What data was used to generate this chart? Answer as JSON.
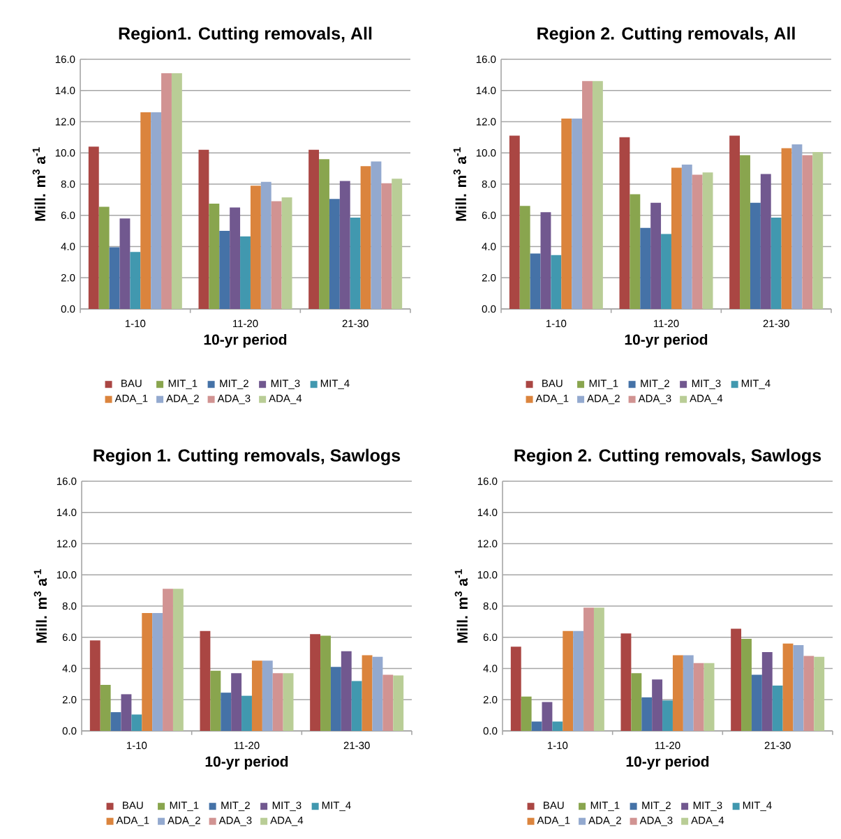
{
  "chart_data": [
    {
      "type": "bar",
      "title": "Region1. Cutting removals, All",
      "xlabel": "10-yr period",
      "ylabel": "Mill. m$^{3}$ a$^{-1}$",
      "categories": [
        "1-10",
        "11-20",
        "21-30"
      ],
      "ylim": [
        0,
        16
      ],
      "yticks": [
        {
          "value": 0,
          "label": "0.0"
        },
        {
          "value": 2,
          "label": "2.0"
        },
        {
          "value": 4,
          "label": "4.0"
        },
        {
          "value": 6,
          "label": "6.0"
        },
        {
          "value": 8,
          "label": "8.0"
        },
        {
          "value": 10,
          "label": "10.0"
        },
        {
          "value": 12,
          "label": "12.0"
        },
        {
          "value": 14,
          "label": "14.0"
        },
        {
          "value": 16,
          "label": "16.0"
        }
      ],
      "grid": "y",
      "legend": "bottom",
      "series": [
        {
          "name": "BAU",
          "color": "#aa4643",
          "values": [
            10.4,
            10.2,
            10.2
          ]
        },
        {
          "name": "MIT_1",
          "color": "#89a54e",
          "values": [
            6.55,
            6.75,
            9.6
          ]
        },
        {
          "name": "MIT_2",
          "color": "#4572a7",
          "values": [
            3.95,
            5.0,
            7.05
          ]
        },
        {
          "name": "MIT_3",
          "color": "#71588f",
          "values": [
            5.8,
            6.5,
            8.2
          ]
        },
        {
          "name": "MIT_4",
          "color": "#4198af",
          "values": [
            3.65,
            4.65,
            5.85
          ]
        },
        {
          "name": "ADA_1",
          "color": "#db843d",
          "values": [
            12.6,
            7.9,
            9.15
          ]
        },
        {
          "name": "ADA_2",
          "color": "#93a9cf",
          "values": [
            12.6,
            8.15,
            9.45
          ]
        },
        {
          "name": "ADA_3",
          "color": "#d19392",
          "values": [
            15.1,
            6.9,
            8.05
          ]
        },
        {
          "name": "ADA_4",
          "color": "#b9cd96",
          "values": [
            15.1,
            7.15,
            8.35
          ]
        }
      ]
    },
    {
      "type": "bar",
      "title": "Region 2. Cutting removals, All",
      "xlabel": "10-yr period",
      "ylabel": "Mill. m$^{3}$ a$^{-1}$",
      "categories": [
        "1-10",
        "11-20",
        "21-30"
      ],
      "ylim": [
        0,
        16
      ],
      "yticks": [
        {
          "value": 0,
          "label": "0.0"
        },
        {
          "value": 2,
          "label": "2.0"
        },
        {
          "value": 4,
          "label": "4.0"
        },
        {
          "value": 6,
          "label": "6.0"
        },
        {
          "value": 8,
          "label": "8.0"
        },
        {
          "value": 10,
          "label": "10.0"
        },
        {
          "value": 12,
          "label": "12.0"
        },
        {
          "value": 14,
          "label": "14.0"
        },
        {
          "value": 16,
          "label": "16.0"
        }
      ],
      "grid": "y",
      "legend": "bottom",
      "series": [
        {
          "name": "BAU",
          "color": "#aa4643",
          "values": [
            11.1,
            11.0,
            11.1
          ]
        },
        {
          "name": "MIT_1",
          "color": "#89a54e",
          "values": [
            6.6,
            7.35,
            9.85
          ]
        },
        {
          "name": "MIT_2",
          "color": "#4572a7",
          "values": [
            3.55,
            5.2,
            6.8
          ]
        },
        {
          "name": "MIT_3",
          "color": "#71588f",
          "values": [
            6.2,
            6.8,
            8.65
          ]
        },
        {
          "name": "MIT_4",
          "color": "#4198af",
          "values": [
            3.45,
            4.8,
            5.85
          ]
        },
        {
          "name": "ADA_1",
          "color": "#db843d",
          "values": [
            12.2,
            9.05,
            10.3
          ]
        },
        {
          "name": "ADA_2",
          "color": "#93a9cf",
          "values": [
            12.2,
            9.25,
            10.55
          ]
        },
        {
          "name": "ADA_3",
          "color": "#d19392",
          "values": [
            14.6,
            8.6,
            9.85
          ]
        },
        {
          "name": "ADA_4",
          "color": "#b9cd96",
          "values": [
            14.6,
            8.75,
            10.05
          ]
        }
      ]
    },
    {
      "type": "bar",
      "title": "Region 1. Cutting removals, Sawlogs",
      "xlabel": "10-yr period",
      "ylabel": "Mill. m$^{3}$ a$^{-1}$",
      "categories": [
        "1-10",
        "11-20",
        "21-30"
      ],
      "ylim": [
        0,
        16
      ],
      "yticks": [
        {
          "value": 0,
          "label": "0.0"
        },
        {
          "value": 2,
          "label": "2.0"
        },
        {
          "value": 4,
          "label": "4.0"
        },
        {
          "value": 6,
          "label": "6.0"
        },
        {
          "value": 8,
          "label": "8.0"
        },
        {
          "value": 10,
          "label": "10.0"
        },
        {
          "value": 12,
          "label": "12.0"
        },
        {
          "value": 14,
          "label": "14.0"
        },
        {
          "value": 16,
          "label": "16.0"
        }
      ],
      "grid": "y",
      "legend": "bottom",
      "series": [
        {
          "name": "BAU",
          "color": "#aa4643",
          "values": [
            5.8,
            6.4,
            6.2
          ]
        },
        {
          "name": "MIT_1",
          "color": "#89a54e",
          "values": [
            2.95,
            3.85,
            6.1
          ]
        },
        {
          "name": "MIT_2",
          "color": "#4572a7",
          "values": [
            1.2,
            2.45,
            4.1
          ]
        },
        {
          "name": "MIT_3",
          "color": "#71588f",
          "values": [
            2.35,
            3.7,
            5.1
          ]
        },
        {
          "name": "MIT_4",
          "color": "#4198af",
          "values": [
            1.05,
            2.25,
            3.2
          ]
        },
        {
          "name": "ADA_1",
          "color": "#db843d",
          "values": [
            7.55,
            4.5,
            4.85
          ]
        },
        {
          "name": "ADA_2",
          "color": "#93a9cf",
          "values": [
            7.55,
            4.5,
            4.75
          ]
        },
        {
          "name": "ADA_3",
          "color": "#d19392",
          "values": [
            9.1,
            3.7,
            3.6
          ]
        },
        {
          "name": "ADA_4",
          "color": "#b9cd96",
          "values": [
            9.1,
            3.7,
            3.55
          ]
        }
      ]
    },
    {
      "type": "bar",
      "title": "Region 2. Cutting removals, Sawlogs",
      "xlabel": "10-yr period",
      "ylabel": "Mill. m$^{3}$ a$^{-1}$",
      "categories": [
        "1-10",
        "11-20",
        "21-30"
      ],
      "ylim": [
        0,
        16
      ],
      "yticks": [
        {
          "value": 0,
          "label": "0.0"
        },
        {
          "value": 2,
          "label": "2.0"
        },
        {
          "value": 4,
          "label": "4.0"
        },
        {
          "value": 6,
          "label": "6.0"
        },
        {
          "value": 8,
          "label": "8.0"
        },
        {
          "value": 10,
          "label": "10.0"
        },
        {
          "value": 12,
          "label": "12.0"
        },
        {
          "value": 14,
          "label": "14.0"
        },
        {
          "value": 16,
          "label": "16.0"
        }
      ],
      "grid": "y",
      "legend": "bottom",
      "series": [
        {
          "name": "BAU",
          "color": "#aa4643",
          "values": [
            5.4,
            6.25,
            6.55
          ]
        },
        {
          "name": "MIT_1",
          "color": "#89a54e",
          "values": [
            2.2,
            3.7,
            5.9
          ]
        },
        {
          "name": "MIT_2",
          "color": "#4572a7",
          "values": [
            0.6,
            2.15,
            3.6
          ]
        },
        {
          "name": "MIT_3",
          "color": "#71588f",
          "values": [
            1.85,
            3.3,
            5.05
          ]
        },
        {
          "name": "MIT_4",
          "color": "#4198af",
          "values": [
            0.6,
            1.95,
            2.9
          ]
        },
        {
          "name": "ADA_1",
          "color": "#db843d",
          "values": [
            6.4,
            4.85,
            5.6
          ]
        },
        {
          "name": "ADA_2",
          "color": "#93a9cf",
          "values": [
            6.4,
            4.85,
            5.5
          ]
        },
        {
          "name": "ADA_3",
          "color": "#d19392",
          "values": [
            7.9,
            4.35,
            4.8
          ]
        },
        {
          "name": "ADA_4",
          "color": "#b9cd96",
          "values": [
            7.9,
            4.35,
            4.75
          ]
        }
      ]
    }
  ]
}
